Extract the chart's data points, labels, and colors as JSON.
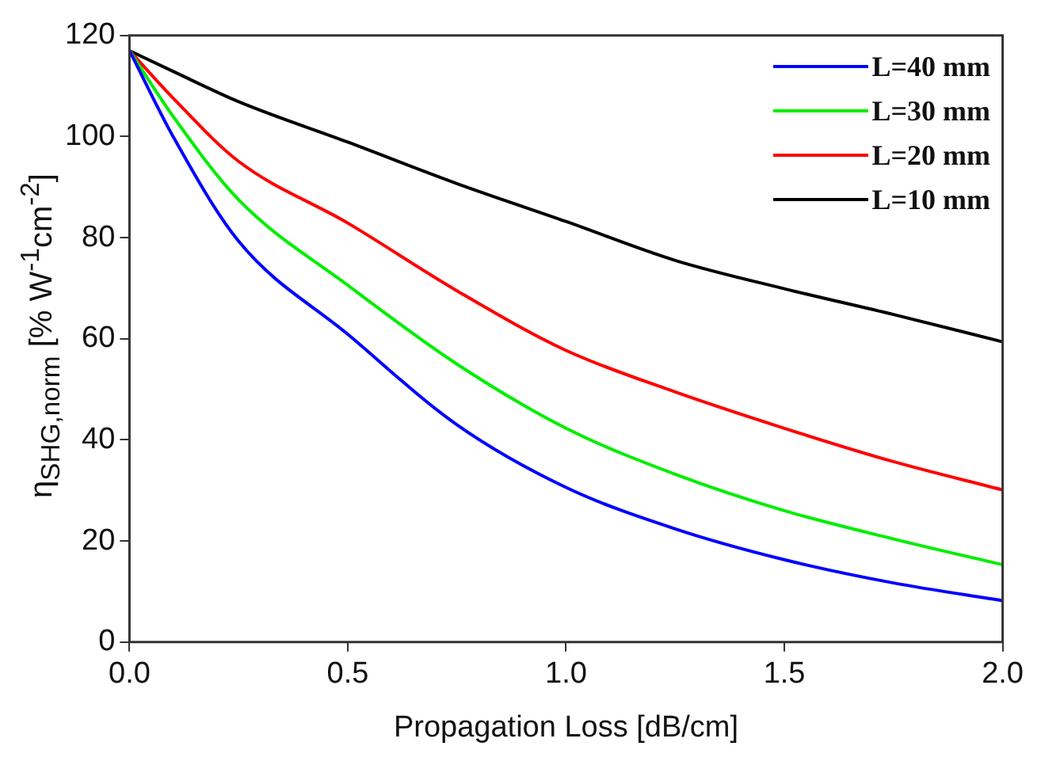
{
  "chart_data": {
    "type": "line",
    "xlabel": "Propagation Loss [dB/cm]",
    "ylabel": "η$_{SHG,norm}$ [% W$^{-1}$cm$^{-2}$]",
    "x": [
      0,
      0.1,
      0.25,
      0.5,
      0.75,
      1.0,
      1.25,
      1.5,
      1.75,
      2.0
    ],
    "series": [
      {
        "name": "L=40 mm",
        "color": "#0000ff",
        "values": [
          117,
          100,
          79.3,
          60.9,
          43,
          30.6,
          22.4,
          16.3,
          11.7,
          8.2
        ]
      },
      {
        "name": "L=30 mm",
        "color": "#00ee00",
        "values": [
          117,
          104,
          87.5,
          70.6,
          55,
          42.3,
          33.2,
          26,
          20.4,
          15.3
        ]
      },
      {
        "name": "L=20 mm",
        "color": "#ff0000",
        "values": [
          117,
          107.6,
          95.1,
          82.9,
          69.5,
          57.7,
          49.5,
          42.3,
          35.7,
          30.1
        ]
      },
      {
        "name": "L=10 mm",
        "color": "#000000",
        "values": [
          117,
          112.9,
          106.9,
          98.9,
          90.7,
          83.2,
          75.5,
          69.9,
          64.8,
          59.4
        ]
      }
    ],
    "xlim": [
      0,
      2
    ],
    "xticks": [
      {
        "value": 0,
        "label": "0.0"
      },
      {
        "value": 0.5,
        "label": "0.5"
      },
      {
        "value": 1,
        "label": "1.0"
      },
      {
        "value": 1.5,
        "label": "1.5"
      },
      {
        "value": 2,
        "label": "2.0"
      }
    ],
    "ylim": [
      0,
      120
    ],
    "yticks": [
      0,
      20,
      40,
      60,
      80,
      100,
      120
    ],
    "grid": false,
    "legend": "top right",
    "marker": "none",
    "line_style": "solid"
  }
}
